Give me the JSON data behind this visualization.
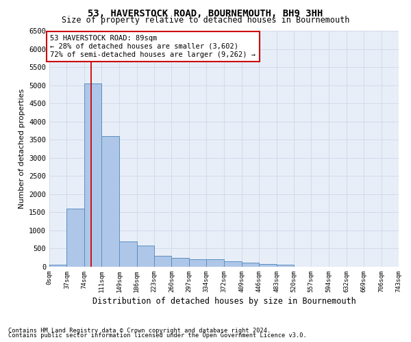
{
  "title": "53, HAVERSTOCK ROAD, BOURNEMOUTH, BH9 3HH",
  "subtitle": "Size of property relative to detached houses in Bournemouth",
  "xlabel": "Distribution of detached houses by size in Bournemouth",
  "ylabel": "Number of detached properties",
  "footnote1": "Contains HM Land Registry data © Crown copyright and database right 2024.",
  "footnote2": "Contains public sector information licensed under the Open Government Licence v3.0.",
  "bar_edges": [
    0,
    37,
    74,
    111,
    149,
    186,
    223,
    260,
    297,
    334,
    372,
    409,
    446,
    483,
    520,
    557,
    594,
    632,
    669,
    706,
    743
  ],
  "bar_heights": [
    55,
    1600,
    5050,
    3600,
    700,
    580,
    310,
    250,
    210,
    200,
    155,
    110,
    70,
    55,
    0,
    0,
    0,
    0,
    0,
    0
  ],
  "bar_color": "#aec6e8",
  "bar_edge_color": "#5a8fc0",
  "grid_color": "#cdd8e8",
  "background_color": "#e8eef8",
  "property_line_x": 89,
  "property_line_color": "#cc0000",
  "annotation_text": "53 HAVERSTOCK ROAD: 89sqm\n← 28% of detached houses are smaller (3,602)\n72% of semi-detached houses are larger (9,262) →",
  "annotation_box_color": "#cc0000",
  "ylim": [
    0,
    6500
  ],
  "yticks": [
    0,
    500,
    1000,
    1500,
    2000,
    2500,
    3000,
    3500,
    4000,
    4500,
    5000,
    5500,
    6000,
    6500
  ],
  "tick_labels": [
    "0sqm",
    "37sqm",
    "74sqm",
    "111sqm",
    "149sqm",
    "186sqm",
    "223sqm",
    "260sqm",
    "297sqm",
    "334sqm",
    "372sqm",
    "409sqm",
    "446sqm",
    "483sqm",
    "520sqm",
    "557sqm",
    "594sqm",
    "632sqm",
    "669sqm",
    "706sqm",
    "743sqm"
  ]
}
